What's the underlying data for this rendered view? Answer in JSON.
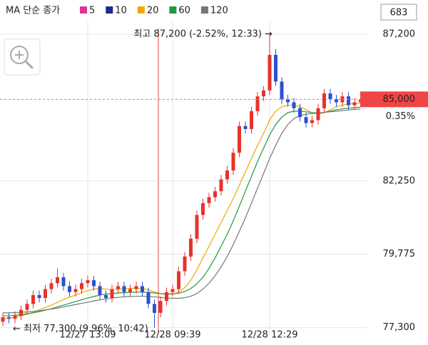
{
  "chart_data": {
    "type": "candlestick",
    "legend_title": "MA 단순 종가",
    "up_color": "#e8322b",
    "down_color": "#2f4fd0",
    "categories": [
      null,
      null,
      null,
      null,
      null,
      null,
      null,
      null,
      null,
      null,
      null,
      null,
      null,
      null,
      "12/27 13:09",
      null,
      null,
      null,
      null,
      null,
      null,
      null,
      null,
      null,
      null,
      null,
      null,
      null,
      "12/28 09:39",
      null,
      null,
      null,
      null,
      null,
      null,
      null,
      null,
      null,
      null,
      null,
      null,
      null,
      null,
      null,
      "12/28 12:29",
      null,
      null,
      null,
      null,
      null,
      null,
      null,
      null,
      null,
      null,
      null,
      null,
      null,
      null,
      null
    ],
    "open": [
      77500,
      77650,
      77600,
      77700,
      77900,
      78100,
      78400,
      78300,
      78600,
      78800,
      79000,
      78700,
      78500,
      78600,
      78800,
      78900,
      78700,
      78400,
      78300,
      78600,
      78700,
      78500,
      78600,
      78700,
      78500,
      78100,
      77800,
      78200,
      78500,
      78600,
      79200,
      79700,
      80300,
      81100,
      81500,
      81700,
      81900,
      82300,
      82600,
      83200,
      84100,
      84000,
      84600,
      85100,
      85300,
      86500,
      85600,
      85000,
      84900,
      84700,
      84400,
      84200,
      84300,
      84700,
      85200,
      85000,
      84900,
      85100,
      84800,
      84900
    ],
    "high": [
      77800,
      77800,
      77850,
      78050,
      78250,
      78550,
      78550,
      78750,
      78950,
      79300,
      79150,
      78850,
      78750,
      78950,
      79050,
      79050,
      78850,
      78550,
      78750,
      78850,
      78850,
      78750,
      78850,
      78850,
      78650,
      78250,
      78350,
      78650,
      78750,
      79350,
      79850,
      80450,
      81250,
      81650,
      81850,
      82050,
      82450,
      82750,
      83350,
      84250,
      84250,
      84750,
      85250,
      85450,
      87200,
      86700,
      85750,
      85150,
      85050,
      84850,
      84550,
      84450,
      84850,
      85350,
      85350,
      85150,
      85250,
      85250,
      85050,
      85150
    ],
    "low": [
      77350,
      77450,
      77450,
      77550,
      77750,
      77950,
      78150,
      78150,
      78450,
      78650,
      78550,
      78350,
      78350,
      78450,
      78650,
      78550,
      78250,
      78150,
      78150,
      78450,
      78350,
      78350,
      78450,
      78350,
      77950,
      77300,
      77650,
      78050,
      78350,
      78450,
      79050,
      79550,
      80150,
      80950,
      81350,
      81550,
      81750,
      82150,
      82450,
      83050,
      83850,
      83850,
      84450,
      84950,
      85150,
      85450,
      84850,
      84750,
      84550,
      84250,
      84050,
      84050,
      84150,
      84550,
      84850,
      84750,
      84750,
      84650,
      84650,
      84750
    ],
    "close": [
      77650,
      77600,
      77700,
      77900,
      78100,
      78400,
      78300,
      78600,
      78800,
      79000,
      78700,
      78500,
      78600,
      78800,
      78900,
      78700,
      78400,
      78300,
      78600,
      78700,
      78500,
      78600,
      78700,
      78500,
      78100,
      77800,
      78200,
      78500,
      78600,
      79200,
      79700,
      80300,
      81100,
      81500,
      81700,
      81900,
      82300,
      82600,
      83200,
      84100,
      84000,
      84600,
      85100,
      85300,
      86500,
      85600,
      85000,
      84900,
      84700,
      84400,
      84200,
      84300,
      84700,
      85200,
      85000,
      84900,
      85100,
      84800,
      84900,
      85000
    ],
    "series": [
      {
        "name": "5",
        "color": "#e0309a"
      },
      {
        "name": "10",
        "color": "#1a2c8c"
      },
      {
        "name": "20",
        "color": "#f0a800",
        "values": [
          77600,
          77620,
          77650,
          77700,
          77750,
          77820,
          77900,
          77980,
          78060,
          78150,
          78250,
          78330,
          78400,
          78480,
          78550,
          78600,
          78620,
          78600,
          78580,
          78600,
          78620,
          78620,
          78630,
          78620,
          78580,
          78500,
          78450,
          78420,
          78430,
          78500,
          78650,
          78900,
          79250,
          79650,
          80050,
          80450,
          80850,
          81250,
          81650,
          82100,
          82550,
          83000,
          83450,
          83850,
          84300,
          84600,
          84750,
          84800,
          84800,
          84750,
          84650,
          84550,
          84500,
          84550,
          84650,
          84750,
          84800,
          84850,
          84850,
          84880
        ]
      },
      {
        "name": "60",
        "color": "#1f9a3a",
        "values": [
          77700,
          77700,
          77720,
          77740,
          77770,
          77800,
          77840,
          77890,
          77940,
          78000,
          78060,
          78120,
          78180,
          78240,
          78300,
          78350,
          78400,
          78430,
          78450,
          78470,
          78480,
          78490,
          78500,
          78500,
          78490,
          78470,
          78450,
          78440,
          78440,
          78460,
          78520,
          78620,
          78780,
          79000,
          79300,
          79650,
          80050,
          80450,
          80900,
          81400,
          81900,
          82400,
          82900,
          83350,
          83800,
          84150,
          84400,
          84550,
          84600,
          84600,
          84580,
          84550,
          84540,
          84560,
          84600,
          84650,
          84680,
          84700,
          84720,
          84740
        ]
      },
      {
        "name": "120",
        "color": "#777777",
        "values": [
          77800,
          77800,
          77810,
          77820,
          77830,
          77850,
          77870,
          77900,
          77930,
          77960,
          78000,
          78040,
          78080,
          78120,
          78160,
          78200,
          78240,
          78270,
          78300,
          78320,
          78340,
          78350,
          78360,
          78360,
          78350,
          78340,
          78320,
          78300,
          78290,
          78290,
          78310,
          78360,
          78450,
          78600,
          78800,
          79050,
          79350,
          79700,
          80100,
          80550,
          81000,
          81500,
          82000,
          82500,
          83000,
          83450,
          83850,
          84150,
          84350,
          84450,
          84500,
          84520,
          84540,
          84560,
          84580,
          84600,
          84620,
          84640,
          84660,
          84680
        ]
      }
    ],
    "ylim": [
      77100,
      88350
    ],
    "yticks": [
      {
        "value": 77300,
        "label": "77,300"
      },
      {
        "value": 79775,
        "label": "79,775"
      },
      {
        "value": 82250,
        "label": "82,250"
      },
      {
        "value": 87200,
        "label": "87,200"
      }
    ],
    "grid": true,
    "current": {
      "value": 85000,
      "label": "85,000",
      "change": "0.35%"
    },
    "high_note": "최고 87,200 (-2.52%, 12:33) →",
    "low_note": "← 최저 77,300 (9.96%, 10:42)",
    "count": "683"
  }
}
